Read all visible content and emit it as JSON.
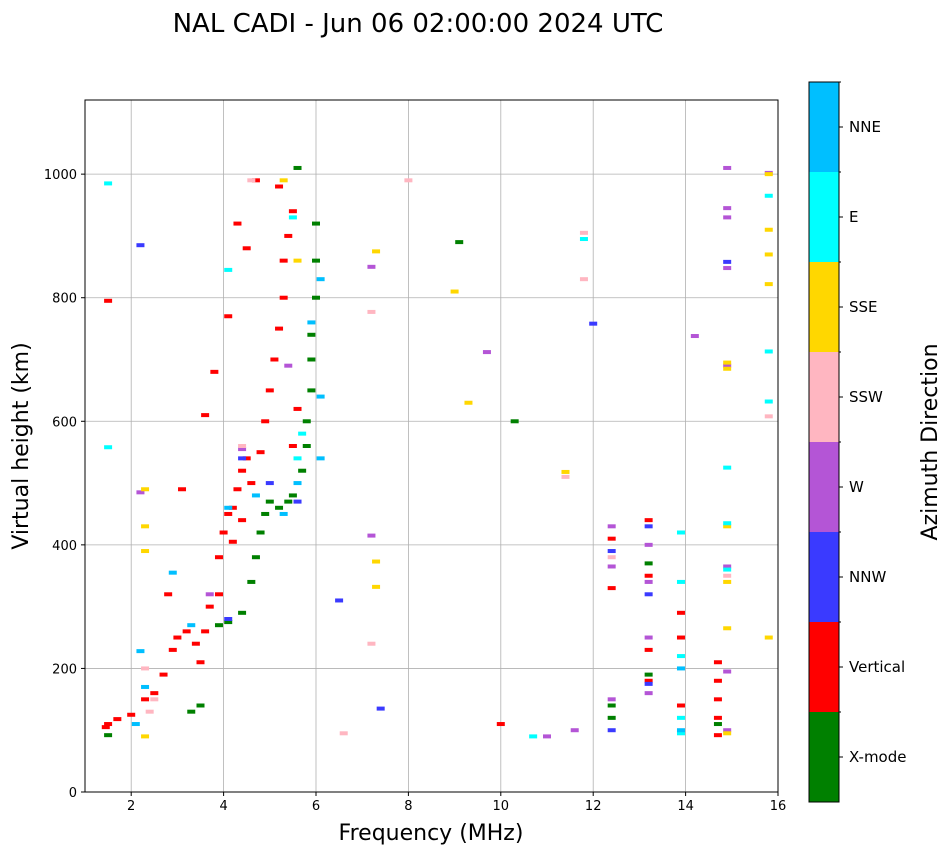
{
  "chart_data": {
    "type": "scatter",
    "title": "NAL CADI - Jun 06 02:00:00 2024 UTC",
    "xlabel": "Frequency (MHz)",
    "ylabel": "Virtual height (km)",
    "xlim": [
      1,
      16
    ],
    "ylim": [
      0,
      1120
    ],
    "xticks": [
      2,
      4,
      6,
      8,
      10,
      12,
      14,
      16
    ],
    "yticks": [
      0,
      200,
      400,
      600,
      800,
      1000
    ],
    "grid": true,
    "colorbar": {
      "label": "Azimuth Direction",
      "categories": [
        {
          "name": "X-mode",
          "color": "#008000"
        },
        {
          "name": "Vertical",
          "color": "#ff0000"
        },
        {
          "name": "NNW",
          "color": "#3a3aff"
        },
        {
          "name": "W",
          "color": "#b455d6"
        },
        {
          "name": "SSW",
          "color": "#ffb6c1"
        },
        {
          "name": "SSE",
          "color": "#ffd700"
        },
        {
          "name": "E",
          "color": "#00ffff"
        },
        {
          "name": "NNE",
          "color": "#00bfff"
        }
      ]
    },
    "series": [
      {
        "name": "Vertical",
        "points": [
          [
            1.45,
            105
          ],
          [
            1.5,
            110
          ],
          [
            1.7,
            118
          ],
          [
            2.0,
            125
          ],
          [
            2.3,
            150
          ],
          [
            2.5,
            160
          ],
          [
            2.7,
            190
          ],
          [
            2.9,
            230
          ],
          [
            3.0,
            250
          ],
          [
            3.2,
            260
          ],
          [
            3.4,
            240
          ],
          [
            3.6,
            260
          ],
          [
            3.7,
            300
          ],
          [
            3.9,
            320
          ],
          [
            3.9,
            380
          ],
          [
            4.0,
            420
          ],
          [
            4.1,
            450
          ],
          [
            4.2,
            460
          ],
          [
            4.3,
            490
          ],
          [
            4.4,
            520
          ],
          [
            4.5,
            540
          ],
          [
            4.6,
            500
          ],
          [
            4.8,
            550
          ],
          [
            4.9,
            600
          ],
          [
            5.0,
            650
          ],
          [
            5.1,
            700
          ],
          [
            5.2,
            750
          ],
          [
            5.3,
            800
          ],
          [
            5.3,
            860
          ],
          [
            5.4,
            900
          ],
          [
            5.5,
            940
          ],
          [
            4.3,
            920
          ],
          [
            4.5,
            880
          ],
          [
            4.1,
            770
          ],
          [
            3.8,
            680
          ],
          [
            3.6,
            610
          ],
          [
            3.1,
            490
          ],
          [
            5.2,
            980
          ],
          [
            4.7,
            990
          ],
          [
            1.5,
            795
          ],
          [
            2.8,
            320
          ],
          [
            3.5,
            210
          ],
          [
            4.2,
            405
          ],
          [
            4.4,
            440
          ],
          [
            5.6,
            620
          ],
          [
            5.5,
            560
          ],
          [
            13.2,
            440
          ],
          [
            13.2,
            350
          ],
          [
            13.2,
            230
          ],
          [
            13.2,
            180
          ],
          [
            13.9,
            290
          ],
          [
            13.9,
            250
          ],
          [
            13.9,
            140
          ],
          [
            14.7,
            210
          ],
          [
            14.7,
            180
          ],
          [
            14.7,
            150
          ],
          [
            14.7,
            120
          ],
          [
            14.7,
            92
          ],
          [
            12.4,
            410
          ],
          [
            12.4,
            330
          ],
          [
            10.0,
            110
          ]
        ]
      },
      {
        "name": "X-mode",
        "points": [
          [
            1.5,
            92
          ],
          [
            3.3,
            130
          ],
          [
            3.5,
            140
          ],
          [
            3.9,
            270
          ],
          [
            4.1,
            275
          ],
          [
            4.4,
            290
          ],
          [
            4.6,
            340
          ],
          [
            4.7,
            380
          ],
          [
            4.8,
            420
          ],
          [
            4.9,
            450
          ],
          [
            5.0,
            470
          ],
          [
            5.2,
            460
          ],
          [
            5.4,
            470
          ],
          [
            5.5,
            480
          ],
          [
            5.7,
            520
          ],
          [
            5.8,
            560
          ],
          [
            5.8,
            600
          ],
          [
            5.9,
            650
          ],
          [
            5.9,
            700
          ],
          [
            5.9,
            740
          ],
          [
            6.0,
            800
          ],
          [
            6.0,
            860
          ],
          [
            6.0,
            920
          ],
          [
            5.6,
            1010
          ],
          [
            9.1,
            890
          ],
          [
            10.3,
            600
          ],
          [
            12.4,
            140
          ],
          [
            12.4,
            120
          ],
          [
            13.2,
            370
          ],
          [
            13.2,
            190
          ],
          [
            14.7,
            110
          ]
        ]
      },
      {
        "name": "NNW",
        "points": [
          [
            2.2,
            885
          ],
          [
            4.1,
            280
          ],
          [
            4.4,
            540
          ],
          [
            5.0,
            500
          ],
          [
            5.6,
            470
          ],
          [
            6.5,
            310
          ],
          [
            7.4,
            135
          ],
          [
            12.0,
            758
          ],
          [
            12.4,
            100
          ],
          [
            12.4,
            390
          ],
          [
            13.2,
            430
          ],
          [
            13.2,
            320
          ],
          [
            13.2,
            175
          ],
          [
            14.9,
            858
          ]
        ]
      },
      {
        "name": "W",
        "points": [
          [
            2.2,
            485
          ],
          [
            3.7,
            320
          ],
          [
            4.4,
            555
          ],
          [
            5.4,
            690
          ],
          [
            7.2,
            415
          ],
          [
            7.2,
            850
          ],
          [
            9.7,
            712
          ],
          [
            11.0,
            90
          ],
          [
            11.6,
            100
          ],
          [
            12.4,
            430
          ],
          [
            12.4,
            150
          ],
          [
            12.4,
            365
          ],
          [
            13.2,
            400
          ],
          [
            13.2,
            340
          ],
          [
            13.2,
            250
          ],
          [
            13.2,
            160
          ],
          [
            14.2,
            738
          ],
          [
            14.9,
            1010
          ],
          [
            14.9,
            945
          ],
          [
            14.9,
            930
          ],
          [
            14.9,
            848
          ],
          [
            14.9,
            690
          ],
          [
            14.9,
            365
          ],
          [
            14.9,
            195
          ],
          [
            14.9,
            100
          ],
          [
            15.8,
            1002
          ]
        ]
      },
      {
        "name": "SSW",
        "points": [
          [
            2.4,
            130
          ],
          [
            2.5,
            150
          ],
          [
            2.3,
            200
          ],
          [
            4.4,
            560
          ],
          [
            4.6,
            990
          ],
          [
            6.6,
            95
          ],
          [
            7.2,
            240
          ],
          [
            7.2,
            777
          ],
          [
            8.0,
            990
          ],
          [
            11.8,
            905
          ],
          [
            11.8,
            830
          ],
          [
            11.4,
            510
          ],
          [
            12.4,
            380
          ],
          [
            15.8,
            608
          ],
          [
            14.9,
            350
          ]
        ]
      },
      {
        "name": "SSE",
        "points": [
          [
            2.3,
            490
          ],
          [
            2.3,
            430
          ],
          [
            2.3,
            390
          ],
          [
            2.3,
            90
          ],
          [
            5.3,
            990
          ],
          [
            5.6,
            860
          ],
          [
            7.3,
            875
          ],
          [
            7.3,
            373
          ],
          [
            7.3,
            332
          ],
          [
            9.0,
            810
          ],
          [
            9.3,
            630
          ],
          [
            11.4,
            518
          ],
          [
            14.9,
            695
          ],
          [
            14.9,
            685
          ],
          [
            14.9,
            430
          ],
          [
            14.9,
            340
          ],
          [
            14.9,
            265
          ],
          [
            14.9,
            95
          ],
          [
            15.8,
            1000
          ],
          [
            15.8,
            910
          ],
          [
            15.8,
            870
          ],
          [
            15.8,
            822
          ],
          [
            15.8,
            250
          ]
        ]
      },
      {
        "name": "E",
        "points": [
          [
            1.5,
            985
          ],
          [
            4.1,
            845
          ],
          [
            5.5,
            930
          ],
          [
            5.7,
            580
          ],
          [
            5.6,
            540
          ],
          [
            10.7,
            90
          ],
          [
            11.8,
            895
          ],
          [
            13.9,
            420
          ],
          [
            13.9,
            340
          ],
          [
            13.9,
            220
          ],
          [
            13.9,
            120
          ],
          [
            13.9,
            95
          ],
          [
            14.9,
            525
          ],
          [
            14.9,
            435
          ],
          [
            14.9,
            360
          ],
          [
            15.8,
            965
          ],
          [
            15.8,
            713
          ],
          [
            15.8,
            632
          ],
          [
            1.5,
            558
          ]
        ]
      },
      {
        "name": "NNE",
        "points": [
          [
            2.2,
            228
          ],
          [
            2.3,
            170
          ],
          [
            2.1,
            110
          ],
          [
            2.9,
            355
          ],
          [
            3.3,
            270
          ],
          [
            4.1,
            460
          ],
          [
            4.7,
            480
          ],
          [
            5.3,
            450
          ],
          [
            5.6,
            500
          ],
          [
            5.9,
            760
          ],
          [
            6.1,
            830
          ],
          [
            6.1,
            640
          ],
          [
            6.1,
            540
          ],
          [
            13.9,
            200
          ],
          [
            13.9,
            100
          ]
        ]
      }
    ]
  }
}
